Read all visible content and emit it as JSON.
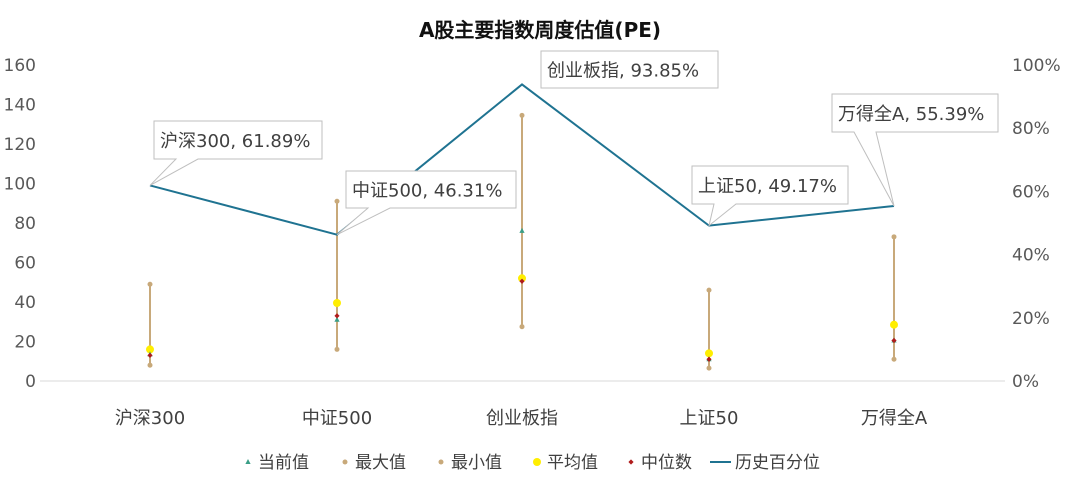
{
  "chart_data": {
    "type": "line",
    "title": "A股主要指数周度估值(PE)",
    "categories": [
      "沪深300",
      "中证500",
      "创业板指",
      "上证50",
      "万得全A"
    ],
    "left_axis": {
      "min": 0,
      "max": 160,
      "ticks": [
        "0",
        "20",
        "40",
        "60",
        "80",
        "100",
        "120",
        "140",
        "160"
      ]
    },
    "right_axis": {
      "min": 0,
      "max": 100,
      "ticks": [
        "0%",
        "20%",
        "40%",
        "60%",
        "80%",
        "100%"
      ]
    },
    "series": [
      {
        "name": "当前值",
        "values": [
          13.5,
          31,
          76,
          11,
          20.5
        ],
        "color": "#3a9e86",
        "axis": "left"
      },
      {
        "name": "最大值",
        "values": [
          49,
          91,
          134.5,
          46,
          73
        ],
        "color": "#c8a97a",
        "axis": "left"
      },
      {
        "name": "最小值",
        "values": [
          8,
          16,
          27.5,
          6.5,
          11
        ],
        "color": "#c8a97a",
        "axis": "left"
      },
      {
        "name": "平均值",
        "values": [
          16,
          39.5,
          52,
          14,
          28.5
        ],
        "color": "#ffee00",
        "axis": "left"
      },
      {
        "name": "中位数",
        "values": [
          13,
          33,
          50.5,
          11,
          20.5
        ],
        "color": "#b01c1c",
        "axis": "left"
      },
      {
        "name": "历史百分位",
        "values": [
          61.89,
          46.31,
          93.85,
          49.17,
          55.39
        ],
        "color": "#1f7391",
        "axis": "right"
      }
    ],
    "annotations": [
      "沪深300, 61.89%",
      "中证500, 46.31%",
      "创业板指, 93.85%",
      "上证50, 49.17%",
      "万得全A, 55.39%"
    ],
    "legend": "bottom"
  }
}
